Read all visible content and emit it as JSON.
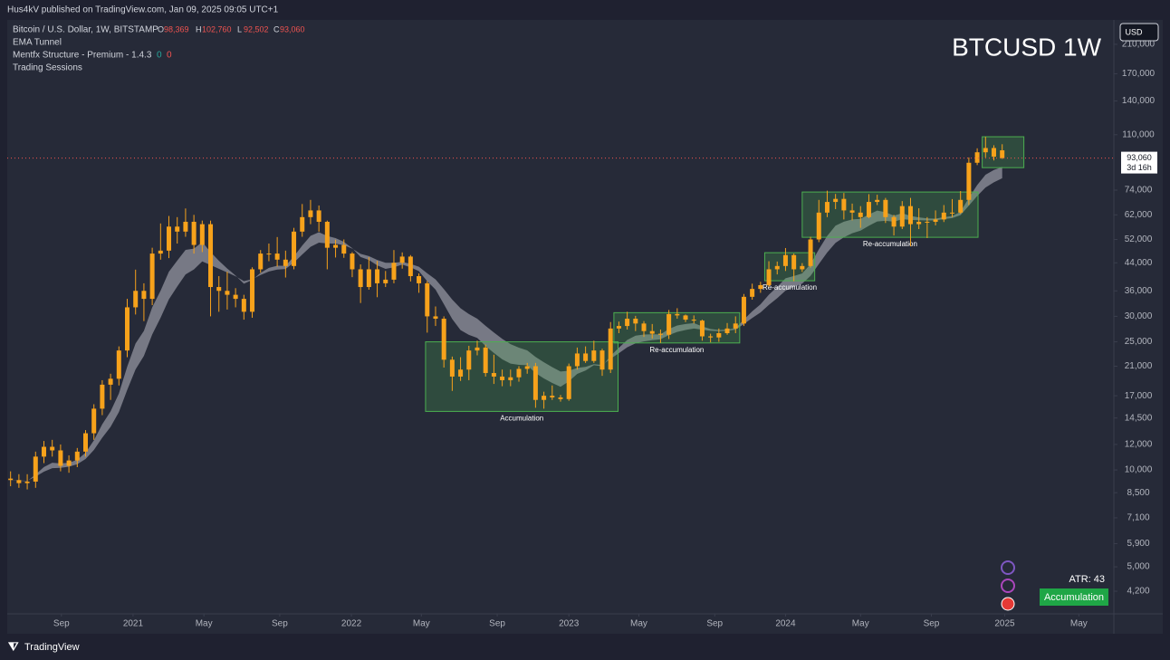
{
  "header": {
    "published": "Hus4kV published on TradingView.com, Jan 09, 2025 09:05 UTC+1"
  },
  "footer": {
    "brand": "TradingView"
  },
  "chart_data": {
    "type": "candlestick",
    "title": "BTCUSD 1W",
    "subtitle": "Bitcoin / U.S. Dollar, 1W, BITSTAMP",
    "currency": "USD",
    "indicators": [
      "EMA Tunnel",
      "Mentfx Structure - Premium - 1.4.3",
      "Trading Sessions"
    ],
    "structure_values": [
      0,
      0
    ],
    "ohlc_prefixes": [
      "O",
      "H",
      "L",
      "C"
    ],
    "last_labels": [
      "98,369",
      "102,760",
      "92,502",
      "93,060"
    ],
    "countdown": "3d 16h",
    "color": "#f7a21b",
    "log_scale": true,
    "grid": false,
    "ylim": [
      3573,
      250000
    ],
    "yticks": [
      {
        "value": 210000,
        "label": "210,000"
      },
      {
        "value": 170000,
        "label": "170,000"
      },
      {
        "value": 140000,
        "label": "140,000"
      },
      {
        "value": 110000,
        "label": "110,000"
      },
      {
        "value": 74000,
        "label": "74,000"
      },
      {
        "value": 62000,
        "label": "62,000"
      },
      {
        "value": 52000,
        "label": "52,000"
      },
      {
        "value": 44000,
        "label": "44,000"
      },
      {
        "value": 36000,
        "label": "36,000"
      },
      {
        "value": 30000,
        "label": "30,000"
      },
      {
        "value": 25000,
        "label": "25,000"
      },
      {
        "value": 21000,
        "label": "21,000"
      },
      {
        "value": 17000,
        "label": "17,000"
      },
      {
        "value": 14500,
        "label": "14,500"
      },
      {
        "value": 12000,
        "label": "12,000"
      },
      {
        "value": 10000,
        "label": "10,000"
      },
      {
        "value": 8500,
        "label": "8,500"
      },
      {
        "value": 7100,
        "label": "7,100"
      },
      {
        "value": 5900,
        "label": "5,900"
      },
      {
        "value": 5000,
        "label": "5,000"
      },
      {
        "value": 4200,
        "label": "4,200"
      }
    ],
    "xlim": [
      -0.4,
      132.4
    ],
    "xticks": [
      {
        "value": 6.1,
        "label": "Sep"
      },
      {
        "value": 14.7,
        "label": "2021"
      },
      {
        "value": 23.2,
        "label": "May"
      },
      {
        "value": 32.3,
        "label": "Sep"
      },
      {
        "value": 40.9,
        "label": "2022"
      },
      {
        "value": 49.3,
        "label": "May"
      },
      {
        "value": 58.4,
        "label": "Sep"
      },
      {
        "value": 67,
        "label": "2023"
      },
      {
        "value": 75.4,
        "label": "May"
      },
      {
        "value": 84.5,
        "label": "Sep"
      },
      {
        "value": 93,
        "label": "2024"
      },
      {
        "value": 102,
        "label": "May"
      },
      {
        "value": 110.5,
        "label": "Sep"
      },
      {
        "value": 119.3,
        "label": "2025"
      },
      {
        "value": 128.2,
        "label": "May"
      }
    ],
    "ohlc": [
      [
        9400,
        9900,
        8900,
        9300
      ],
      [
        9300,
        9700,
        8800,
        9100
      ],
      [
        9100,
        9700,
        8700,
        9200
      ],
      [
        9200,
        11400,
        8800,
        11000
      ],
      [
        11000,
        12300,
        10500,
        11800
      ],
      [
        11800,
        12400,
        11000,
        11500
      ],
      [
        11500,
        12000,
        9900,
        10300
      ],
      [
        10300,
        11100,
        9800,
        10700
      ],
      [
        10700,
        11700,
        10200,
        11400
      ],
      [
        11400,
        13300,
        11000,
        13000
      ],
      [
        13000,
        16000,
        12400,
        15500
      ],
      [
        15500,
        19000,
        14800,
        18400
      ],
      [
        18400,
        19900,
        16500,
        19200
      ],
      [
        19200,
        24200,
        18300,
        23500
      ],
      [
        23500,
        34000,
        22400,
        32000
      ],
      [
        32000,
        41900,
        30400,
        36000
      ],
      [
        36000,
        38000,
        29000,
        34000
      ],
      [
        34000,
        49000,
        32500,
        47000
      ],
      [
        47000,
        58300,
        45000,
        48000
      ],
      [
        48000,
        61500,
        45500,
        57000
      ],
      [
        57000,
        61000,
        50500,
        55000
      ],
      [
        55000,
        64900,
        53000,
        59000
      ],
      [
        59000,
        62000,
        47000,
        50000
      ],
      [
        50000,
        59500,
        47500,
        58000
      ],
      [
        58000,
        59500,
        30000,
        37000
      ],
      [
        37000,
        40000,
        31000,
        36000
      ],
      [
        36000,
        41300,
        31500,
        35000
      ],
      [
        35000,
        36700,
        32000,
        34000
      ],
      [
        34000,
        35000,
        29300,
        31000
      ],
      [
        31000,
        42600,
        29700,
        42000
      ],
      [
        42000,
        48200,
        41000,
        47000
      ],
      [
        47000,
        50500,
        44500,
        47000
      ],
      [
        47000,
        52900,
        42800,
        45000
      ],
      [
        45000,
        48000,
        39600,
        43000
      ],
      [
        43000,
        56500,
        42000,
        55000
      ],
      [
        55000,
        67000,
        53000,
        61000
      ],
      [
        61000,
        69000,
        58000,
        64000
      ],
      [
        64000,
        66300,
        55000,
        59000
      ],
      [
        59000,
        59500,
        42000,
        49000
      ],
      [
        49000,
        51900,
        45700,
        50000
      ],
      [
        50000,
        52000,
        45600,
        47000
      ],
      [
        47000,
        47500,
        39700,
        42000
      ],
      [
        42000,
        43500,
        33000,
        37000
      ],
      [
        37000,
        45800,
        36300,
        42000
      ],
      [
        42000,
        44600,
        34400,
        38000
      ],
      [
        38000,
        41500,
        37000,
        39000
      ],
      [
        39000,
        48200,
        38000,
        44000
      ],
      [
        44000,
        47400,
        42200,
        46000
      ],
      [
        46000,
        46500,
        38500,
        40000
      ],
      [
        40000,
        40800,
        35500,
        38000
      ],
      [
        38000,
        38600,
        26700,
        30000
      ],
      [
        30000,
        32200,
        28000,
        29500
      ],
      [
        29500,
        30000,
        20800,
        22000
      ],
      [
        22000,
        22500,
        17600,
        19500
      ],
      [
        19500,
        22400,
        18900,
        20500
      ],
      [
        20500,
        24300,
        19000,
        23500
      ],
      [
        23500,
        25200,
        22700,
        24000
      ],
      [
        24000,
        24500,
        19500,
        20000
      ],
      [
        20000,
        22800,
        18500,
        19500
      ],
      [
        19500,
        20500,
        18200,
        19000
      ],
      [
        19000,
        20500,
        18200,
        19400
      ],
      [
        19400,
        21000,
        18800,
        20600
      ],
      [
        20600,
        21500,
        19900,
        21000
      ],
      [
        21000,
        21500,
        15600,
        16500
      ],
      [
        16500,
        17500,
        15500,
        17000
      ],
      [
        17000,
        18300,
        16500,
        16800
      ],
      [
        16800,
        17100,
        16300,
        16600
      ],
      [
        16600,
        21400,
        16400,
        21000
      ],
      [
        21000,
        24000,
        20500,
        23000
      ],
      [
        23000,
        24200,
        21500,
        21800
      ],
      [
        21800,
        25200,
        21500,
        23500
      ],
      [
        23500,
        23800,
        19600,
        20500
      ],
      [
        20500,
        28800,
        20000,
        27500
      ],
      [
        27500,
        28900,
        26600,
        28000
      ],
      [
        28000,
        31000,
        27300,
        29500
      ],
      [
        29500,
        30100,
        27000,
        28500
      ],
      [
        28500,
        29000,
        25900,
        27000
      ],
      [
        27000,
        28400,
        25600,
        26500
      ],
      [
        26500,
        27300,
        24800,
        26300
      ],
      [
        26300,
        31400,
        25500,
        30500
      ],
      [
        30500,
        31800,
        29500,
        30200
      ],
      [
        30200,
        30400,
        28800,
        29300
      ],
      [
        29300,
        30200,
        28500,
        29100
      ],
      [
        29100,
        29300,
        25200,
        26000
      ],
      [
        26000,
        26500,
        24900,
        25800
      ],
      [
        25800,
        27500,
        25000,
        26600
      ],
      [
        26600,
        28600,
        26300,
        27500
      ],
      [
        27500,
        30000,
        26600,
        28500
      ],
      [
        28500,
        35200,
        28000,
        34500
      ],
      [
        34500,
        37900,
        33800,
        36500
      ],
      [
        36500,
        38400,
        35500,
        37500
      ],
      [
        37500,
        44500,
        37000,
        42000
      ],
      [
        42000,
        44400,
        40500,
        43000
      ],
      [
        43000,
        48900,
        41500,
        46500
      ],
      [
        46500,
        47000,
        38600,
        42000
      ],
      [
        42000,
        43900,
        41200,
        43000
      ],
      [
        43000,
        53000,
        42500,
        52000
      ],
      [
        52000,
        69000,
        51000,
        63000
      ],
      [
        63000,
        73700,
        61000,
        68000
      ],
      [
        68000,
        72000,
        64600,
        69500
      ],
      [
        69500,
        72500,
        60000,
        64000
      ],
      [
        64000,
        67200,
        59600,
        63000
      ],
      [
        63000,
        66000,
        56500,
        61000
      ],
      [
        61000,
        71900,
        60500,
        68000
      ],
      [
        68000,
        71600,
        66500,
        69000
      ],
      [
        69000,
        70000,
        58500,
        61000
      ],
      [
        61000,
        62000,
        53500,
        57000
      ],
      [
        57000,
        68400,
        56000,
        66000
      ],
      [
        66000,
        70000,
        49500,
        58000
      ],
      [
        58000,
        65000,
        56000,
        59000
      ],
      [
        59000,
        61000,
        52500,
        59000
      ],
      [
        59000,
        64000,
        57500,
        60000
      ],
      [
        60000,
        66500,
        58900,
        63000
      ],
      [
        63000,
        69400,
        61000,
        63000
      ],
      [
        63000,
        73500,
        62500,
        69000
      ],
      [
        69000,
        93500,
        66500,
        90000
      ],
      [
        90000,
        99800,
        88500,
        97000
      ],
      [
        97000,
        108300,
        93500,
        100000
      ],
      [
        100000,
        102000,
        91500,
        94000
      ],
      [
        98369,
        102760,
        92502,
        93060
      ]
    ],
    "zones": [
      {
        "label": "Accumulation",
        "x": [
          49.8,
          72.9
        ],
        "y": [
          15200,
          25000
        ]
      },
      {
        "label": "Re-accumulation",
        "x": [
          72.4,
          87.5
        ],
        "y": [
          24800,
          30800
        ]
      },
      {
        "label": "Re-accumulation",
        "x": [
          90.5,
          96.5
        ],
        "y": [
          38700,
          47300
        ]
      },
      {
        "label": "Re-accumulation",
        "x": [
          95,
          116.1
        ],
        "y": [
          52800,
          73000
        ]
      },
      {
        "x": [
          116.6,
          121.6
        ],
        "y": [
          86900,
          108400
        ]
      }
    ],
    "atr_label": "ATR: 43",
    "status": "Accumulation"
  }
}
